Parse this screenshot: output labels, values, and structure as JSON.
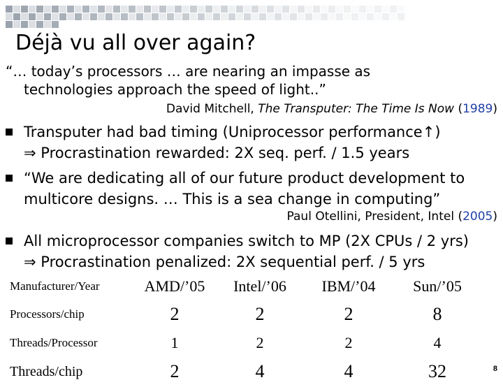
{
  "slide": {
    "title": "Déjà vu all over again?",
    "quote1_line1": "“… today’s processors … are nearing an impasse as",
    "quote1_line2": "technologies approach the speed of light..”",
    "attr1_name": "David Mitchell, ",
    "attr1_work": "The Transputer: The Time Is Now",
    "attr1_year_open": " (",
    "attr1_year": "1989",
    "attr1_year_close": ")",
    "bullet1_line1": "Transputer had bad timing (Uniprocessor performance",
    "bullet1_line1_end": ")",
    "bullet1_line2": " Procrastination rewarded: 2X seq. perf. / 1.5 years",
    "bullet2_line1": " “We are dedicating all of our future product development to",
    "bullet2_line2": "multicore designs. … This is a sea change in computing”",
    "attr2_name": "Paul Otellini, President, Intel (",
    "attr2_year": "2005",
    "attr2_year_close": ")",
    "bullet3_line1": "All microprocessor companies switch to MP (2X CPUs / 2 yrs)",
    "bullet3_line2": " Procrastination penalized: 2X sequential perf. / 5 yrs",
    "page_number": "8"
  },
  "table": {
    "header_label": "Manufacturer/Year",
    "columns": [
      "AMD/’05",
      "Intel/’06",
      "IBM/’04",
      "Sun/’05"
    ],
    "rows": [
      {
        "label": "Processors/chip",
        "values": [
          "2",
          "2",
          "2",
          "8"
        ]
      },
      {
        "label": "Threads/Processor",
        "values": [
          "1",
          "2",
          "2",
          "4"
        ]
      },
      {
        "label": "Threads/chip",
        "values": [
          "2",
          "4",
          "4",
          "32"
        ]
      }
    ]
  },
  "colors": {
    "checker_dark": "#9aa3ad",
    "checker_light": "#d5d9de",
    "year_accent": "#1f3fa8"
  },
  "icons": {
    "bullet": "square-bullet-icon",
    "up_arrow": "up-arrow-icon",
    "implies": "implies-arrow-icon"
  }
}
